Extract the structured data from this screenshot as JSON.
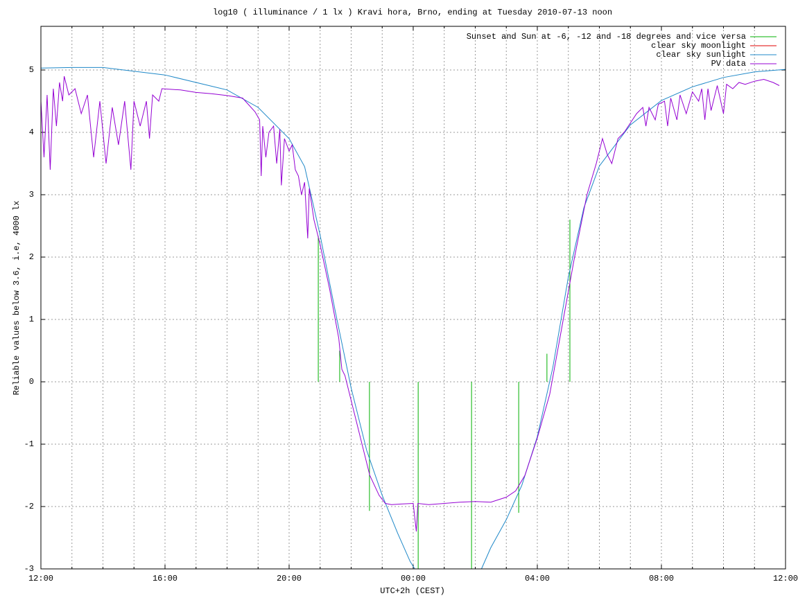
{
  "chart_data": {
    "type": "line",
    "title": "log10 ( illuminance / 1 lx ) Kravi hora, Brno, ending at Tuesday 2010-07-13 noon",
    "xlabel": "UTC+2h (CEST)",
    "ylabel": "Reliable values below 3.6, i.e, 4000 lx",
    "xlim": [
      0,
      24
    ],
    "ylim": [
      -3,
      5.7
    ],
    "xticks": [
      {
        "value": 0,
        "label": "12:00"
      },
      {
        "value": 4,
        "label": "16:00"
      },
      {
        "value": 8,
        "label": "20:00"
      },
      {
        "value": 12,
        "label": "00:00"
      },
      {
        "value": 16,
        "label": "04:00"
      },
      {
        "value": 20,
        "label": "08:00"
      },
      {
        "value": 24,
        "label": "12:00"
      }
    ],
    "xminorticks": [
      1,
      2,
      3,
      5,
      6,
      7,
      9,
      10,
      11,
      13,
      14,
      15,
      17,
      18,
      19,
      21,
      22,
      23
    ],
    "yticks": [
      -3,
      -2,
      -1,
      0,
      1,
      2,
      3,
      4,
      5
    ],
    "grid": true,
    "legend": "top-right",
    "series": [
      {
        "name": "Sunset and Sun at -6, -12 and -18 degrees and vice versa",
        "color": "#00b000",
        "style": "stems",
        "base": 0,
        "x": [
          8.94,
          9.63,
          10.59,
          12.16,
          13.88,
          15.4,
          16.31,
          17.05
        ],
        "values": [
          2.34,
          0.5,
          -2.07,
          -3,
          -3,
          -2.1,
          0.45,
          2.6
        ]
      },
      {
        "name": "clear sky moonlight",
        "color": "#e00000",
        "style": "line",
        "x": [],
        "values": []
      },
      {
        "name": "clear sky sunlight",
        "color": "#1e88c8",
        "style": "line",
        "x": [
          0,
          1,
          2,
          4,
          6,
          7,
          8,
          8.5,
          9,
          9.5,
          10,
          10.5,
          11,
          11.5,
          11.9,
          12.05,
          13,
          14.2,
          14.5,
          15,
          15.5,
          16,
          16.5,
          17,
          17.5,
          18,
          19,
          20,
          21,
          22,
          23,
          24
        ],
        "values": [
          5.03,
          5.04,
          5.04,
          4.92,
          4.68,
          4.4,
          3.9,
          3.45,
          2.35,
          1.1,
          -0.1,
          -1.1,
          -1.82,
          -2.43,
          -2.88,
          -3,
          null,
          -3,
          -2.66,
          -2.21,
          -1.66,
          -0.88,
          0.23,
          1.68,
          2.79,
          3.46,
          4.12,
          4.51,
          4.73,
          4.88,
          4.97,
          5.01
        ]
      },
      {
        "name": "PV data",
        "color": "#9400d3",
        "style": "line",
        "x": [
          0,
          0.1,
          0.2,
          0.3,
          0.4,
          0.5,
          0.6,
          0.7,
          0.75,
          0.9,
          1.1,
          1.3,
          1.5,
          1.7,
          1.9,
          2.1,
          2.3,
          2.5,
          2.7,
          2.9,
          3.0,
          3.2,
          3.4,
          3.5,
          3.6,
          3.8,
          3.9,
          4.5,
          5,
          5.5,
          6,
          6.5,
          6.9,
          7.05,
          7.1,
          7.15,
          7.25,
          7.35,
          7.5,
          7.6,
          7.7,
          7.75,
          7.85,
          8.0,
          8.1,
          8.2,
          8.3,
          8.4,
          8.5,
          8.6,
          8.65,
          8.8,
          9.0,
          9.3,
          9.6,
          9.7,
          9.8,
          10,
          10.3,
          10.6,
          10.9,
          11.1,
          11.3,
          11.6,
          12,
          12.1,
          12.15,
          12.5,
          13,
          13.5,
          14,
          14.5,
          15,
          15.3,
          15.6,
          16,
          16.4,
          16.8,
          17.2,
          17.6,
          17.9,
          18.1,
          18.25,
          18.4,
          18.6,
          18.8,
          19,
          19.2,
          19.4,
          19.5,
          19.6,
          19.8,
          19.9,
          20.1,
          20.2,
          20.3,
          20.5,
          20.6,
          20.8,
          21.0,
          21.2,
          21.3,
          21.4,
          21.5,
          21.6,
          21.8,
          22,
          22.1,
          22.3,
          22.5,
          22.7,
          23,
          23.3,
          23.6,
          23.8
        ],
        "values": [
          4.5,
          3.6,
          4.6,
          3.4,
          4.7,
          4.1,
          4.8,
          4.5,
          4.9,
          4.6,
          4.7,
          4.3,
          4.6,
          3.6,
          4.5,
          3.5,
          4.4,
          3.8,
          4.5,
          3.4,
          4.5,
          4.1,
          4.5,
          3.9,
          4.6,
          4.5,
          4.7,
          4.68,
          4.64,
          4.62,
          4.59,
          4.55,
          4.33,
          4.2,
          3.3,
          4.1,
          3.6,
          4.0,
          4.1,
          3.5,
          4.05,
          3.15,
          3.9,
          3.7,
          3.8,
          3.4,
          3.3,
          3.0,
          3.2,
          2.3,
          3.1,
          2.6,
          2.2,
          1.5,
          0.7,
          0.2,
          0.1,
          -0.3,
          -0.9,
          -1.5,
          -1.82,
          -1.95,
          -1.97,
          -1.96,
          -1.95,
          -2.4,
          -1.95,
          -1.97,
          -1.95,
          -1.93,
          -1.92,
          -1.93,
          -1.85,
          -1.75,
          -1.5,
          -0.9,
          -0.2,
          0.9,
          2.0,
          3.0,
          3.5,
          3.9,
          3.65,
          3.5,
          3.9,
          4.0,
          4.15,
          4.3,
          4.4,
          4.1,
          4.4,
          4.2,
          4.45,
          4.5,
          4.1,
          4.55,
          4.2,
          4.6,
          4.3,
          4.65,
          4.5,
          4.7,
          4.2,
          4.7,
          4.35,
          4.75,
          4.3,
          4.77,
          4.7,
          4.8,
          4.77,
          4.82,
          4.85,
          4.8,
          4.75
        ]
      }
    ]
  }
}
